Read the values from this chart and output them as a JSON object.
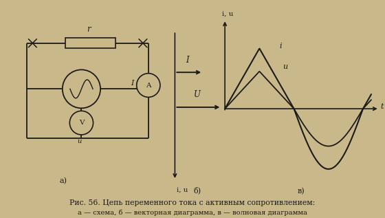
{
  "bg_color": "#c9b98a",
  "fig_width": 5.6,
  "fig_height": 3.17,
  "dpi": 100,
  "caption_line1": "Рис. 56. Цепь переменного тока с активным сопротивлением:",
  "caption_line2": "а — схема, б — векторная диаграмма, в — волновая диаграмма",
  "label_a": "а)",
  "label_b": "б)",
  "label_v": "в)",
  "resistor_label": "r",
  "ammeter_label": "A",
  "current_label": "I",
  "voltmeter_label": "V",
  "vector_I_label": "I",
  "vector_U_label": "U",
  "vector_iu_label": "i, u",
  "wave_t_label": "t",
  "wave_iu_label": "i, u",
  "wave_i_label": "i",
  "wave_u_label": "u",
  "wave_i_amplitude": 1.0,
  "wave_u_amplitude": 0.62,
  "line_color": "#1c1a17",
  "text_color": "#1c1a17"
}
